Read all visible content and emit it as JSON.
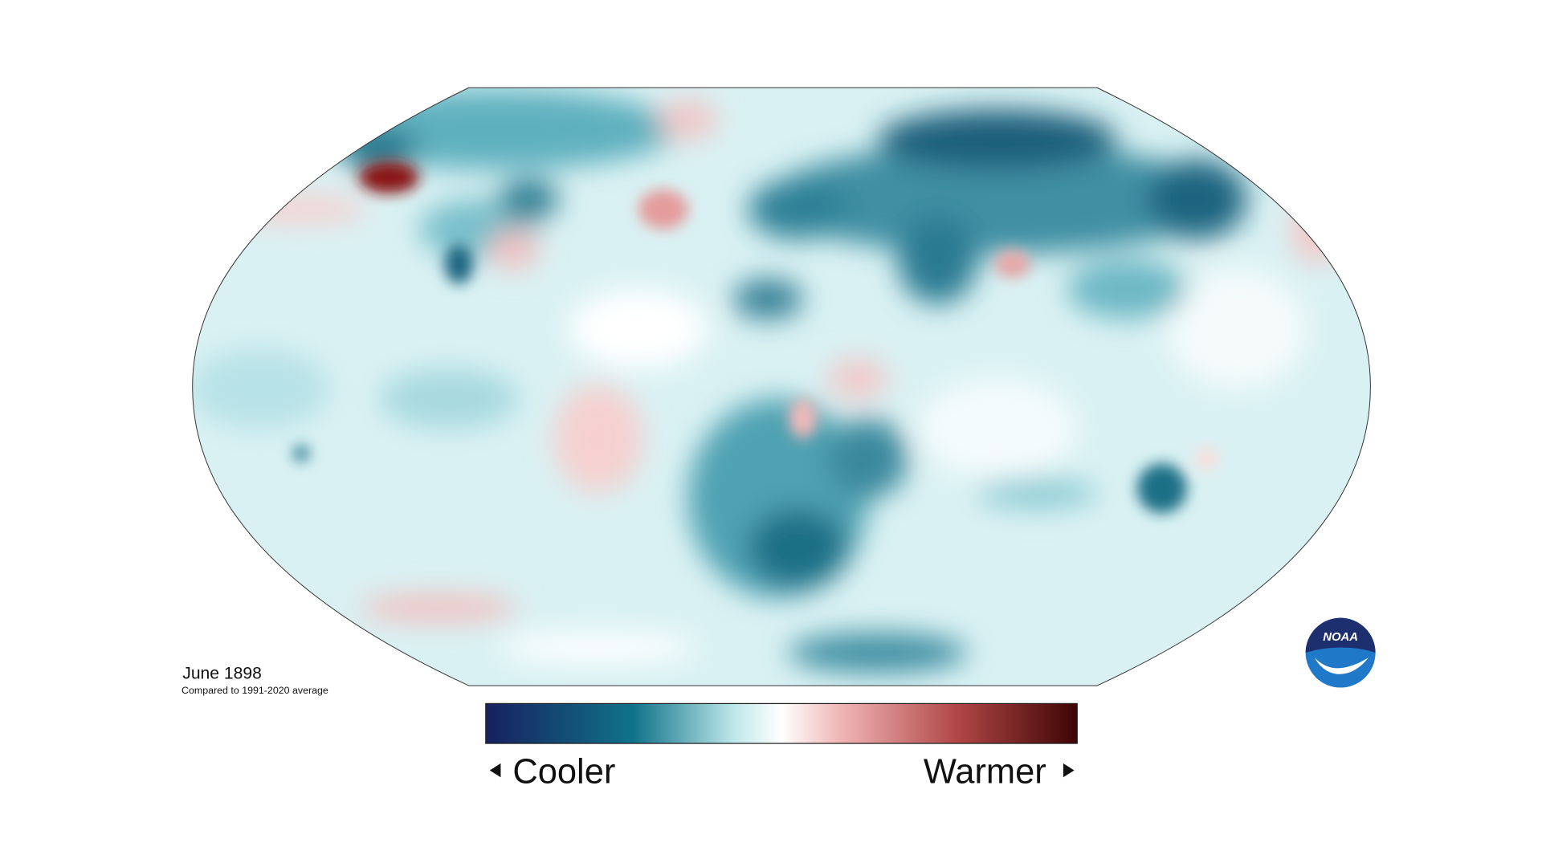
{
  "caption": {
    "title": "June 1898",
    "subtitle": "Compared to 1991-2020 average"
  },
  "legend": {
    "low_label": "Cooler",
    "high_label": "Warmer"
  },
  "logo": {
    "text": "NOAA"
  }
}
